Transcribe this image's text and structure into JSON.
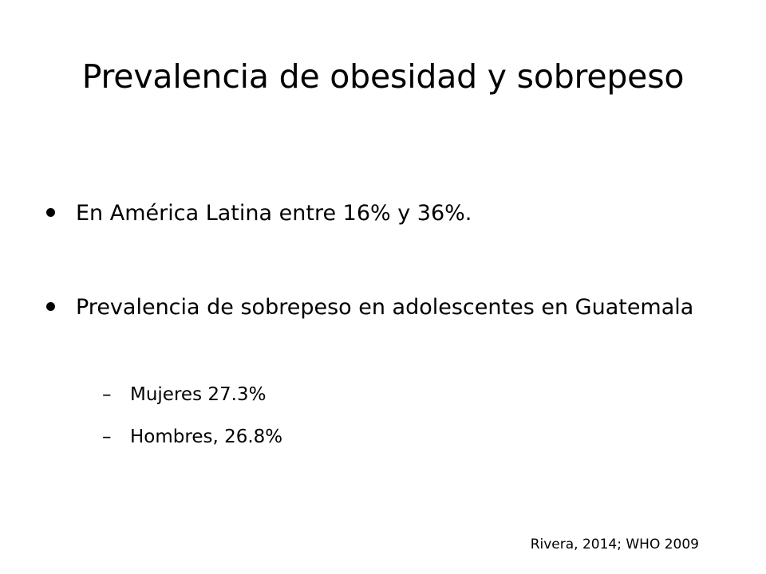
{
  "slide": {
    "title": "Prevalencia de obesidad y sobrepeso",
    "bullets": [
      {
        "text": "En  América Latina entre 16% y 36%."
      },
      {
        "text": "Prevalencia de sobrepeso en adolescentes en Guatemala",
        "sub_bullets": [
          {
            "marker": "–",
            "text": "Mujeres 27.3%"
          },
          {
            "marker": "–",
            "text": "Hombres, 26.8%"
          }
        ]
      }
    ],
    "citation": "Rivera, 2014; WHO 2009"
  }
}
